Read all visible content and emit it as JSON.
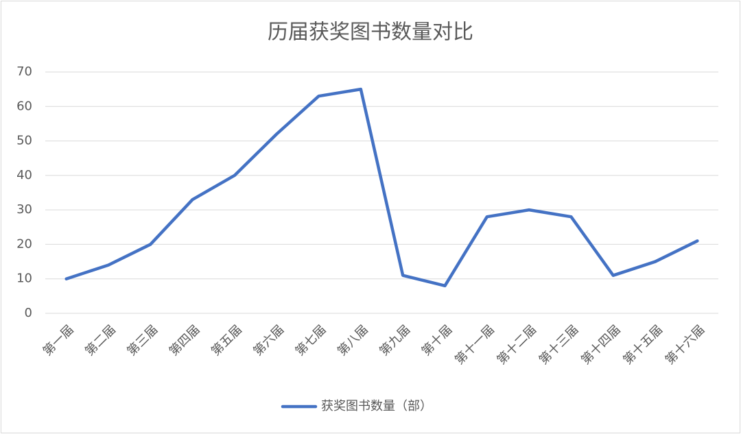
{
  "chart_data": {
    "type": "line",
    "title": "历届获奖图书数量对比",
    "categories": [
      "第一届",
      "第二届",
      "第三届",
      "第四届",
      "第五届",
      "第六届",
      "第七届",
      "第八届",
      "第九届",
      "第十届",
      "第十一届",
      "第十二届",
      "第十三届",
      "第十四届",
      "第十五届",
      "第十六届"
    ],
    "series": [
      {
        "name": "获奖图书数量（部）",
        "color": "#4472c4",
        "values": [
          10,
          14,
          20,
          33,
          40,
          52,
          63,
          65,
          11,
          8,
          28,
          30,
          28,
          11,
          15,
          21
        ]
      }
    ],
    "ylim": [
      0,
      70
    ],
    "yticks": [
      0,
      10,
      20,
      30,
      40,
      50,
      60,
      70
    ],
    "grid": true,
    "legend": "bottom"
  }
}
